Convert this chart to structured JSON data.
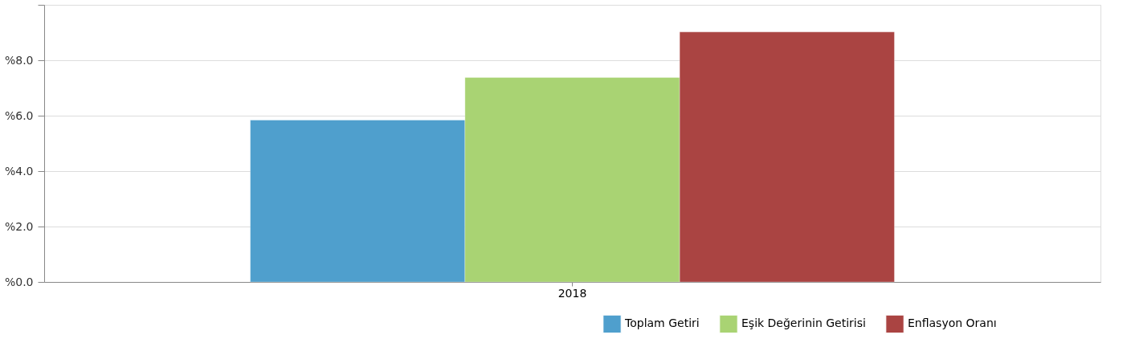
{
  "chart_data": {
    "type": "bar",
    "categories": [
      "2018"
    ],
    "series": [
      {
        "name": "Toplam Getiri",
        "color": "#4f9fcd",
        "values": [
          5.84
        ]
      },
      {
        "name": "Eşik Değerinin Getirisi",
        "color": "#a9d373",
        "values": [
          7.38
        ]
      },
      {
        "name": "Enflasyon Oranı",
        "color": "#aa4442",
        "values": [
          9.02
        ]
      }
    ],
    "ylim": [
      0,
      10
    ],
    "yticks": [
      {
        "value": 0,
        "label": "%0.0"
      },
      {
        "value": 2,
        "label": "%2.0"
      },
      {
        "value": 4,
        "label": "%4.0"
      },
      {
        "value": 6,
        "label": "%6.0"
      },
      {
        "value": 8,
        "label": "%8.0"
      },
      {
        "value": 10,
        "label": null
      }
    ],
    "grid": "y",
    "legend": "bottom right"
  }
}
